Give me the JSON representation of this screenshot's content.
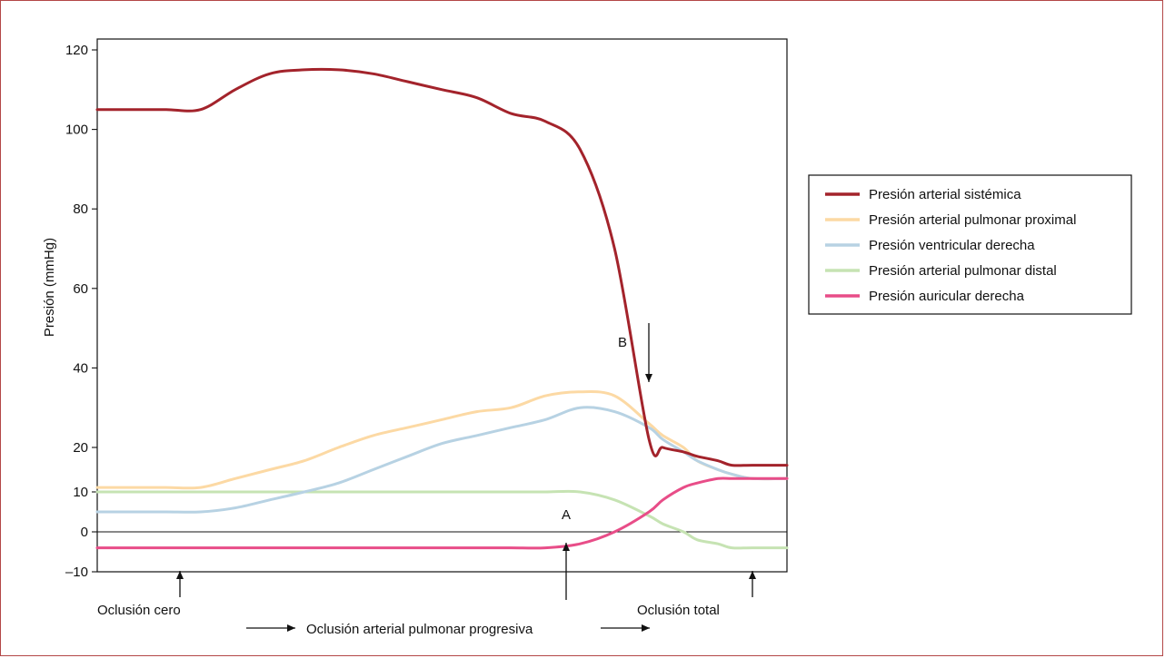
{
  "chart_data": {
    "type": "line",
    "ylabel": "Presión (mmHg)",
    "xlabel": "",
    "ylim": [
      -10,
      123
    ],
    "y_scale": "piecewise (0–10 and 10–20 each span a 10-unit segment; 20–120 linear)",
    "yticks": [
      -10,
      0,
      10,
      20,
      40,
      60,
      80,
      100,
      120
    ],
    "ytick_labels": [
      "–10",
      "0",
      "10",
      "20",
      "40",
      "60",
      "80",
      "100",
      "120"
    ],
    "x": [
      0,
      5,
      10,
      15,
      20,
      25,
      30,
      35,
      40,
      45,
      50,
      55,
      60,
      65,
      70,
      75,
      80,
      82,
      85,
      87,
      90,
      92,
      95,
      100
    ],
    "series": [
      {
        "name": "Presión arterial sistémica",
        "color": "#a3232b",
        "values": [
          105,
          105,
          105,
          105,
          110,
          114,
          115,
          115,
          114,
          112,
          110,
          108,
          104,
          102,
          95,
          70,
          22,
          20,
          19,
          18,
          17,
          16,
          16,
          16
        ]
      },
      {
        "name": "Presión arterial pulmonar proximal",
        "color": "#fcd9a4",
        "values": [
          11,
          11,
          11,
          11,
          13,
          15,
          17,
          20,
          23,
          25,
          27,
          29,
          30,
          33,
          34,
          33,
          26,
          23,
          20,
          17,
          15,
          14,
          13,
          13
        ]
      },
      {
        "name": "Presión ventricular derecha",
        "color": "#b7d2e3",
        "values": [
          5,
          5,
          5,
          5,
          6,
          8,
          10,
          12,
          15,
          18,
          21,
          23,
          25,
          27,
          30,
          29,
          25,
          22,
          19,
          17,
          15,
          14,
          13,
          13
        ]
      },
      {
        "name": "Presión arterial pulmonar distal",
        "color": "#c6e3b3",
        "values": [
          10,
          10,
          10,
          10,
          10,
          10,
          10,
          10,
          10,
          10,
          10,
          10,
          10,
          10,
          10,
          8,
          4,
          2,
          0,
          -2,
          -3,
          -4,
          -4,
          -4
        ]
      },
      {
        "name": "Presión auricular derecha",
        "color": "#e84d88",
        "values": [
          -4,
          -4,
          -4,
          -4,
          -4,
          -4,
          -4,
          -4,
          -4,
          -4,
          -4,
          -4,
          -4,
          -4,
          -3,
          0,
          5,
          8,
          11,
          12,
          13,
          13,
          13,
          13
        ]
      }
    ],
    "annotations": {
      "A": "A",
      "B": "B",
      "oclusion_cero": "Oclusión cero",
      "oclusion_total": "Oclusión total",
      "progresiva": "Oclusión arterial pulmonar progresiva"
    },
    "legend_position": "right",
    "grid": false,
    "zero_line": true
  }
}
